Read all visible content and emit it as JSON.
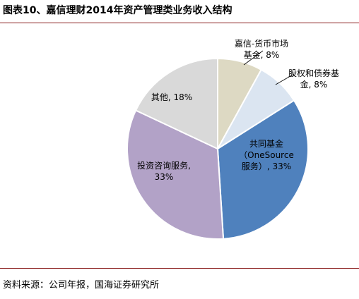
{
  "title": "图表10、嘉信理财2014年资产管理类业务收入结构",
  "source": "资料来源：公司年报，国海证券研究所",
  "chart_data": {
    "type": "pie",
    "title": "图表10、嘉信理财2014年资产管理类业务收入结构",
    "unit": "%",
    "slices": [
      {
        "label_lines": [
          "嘉信-货币市场",
          "基金, 8%"
        ],
        "value": 8,
        "color": "#ddd9c3"
      },
      {
        "label_lines": [
          "股权和债券基",
          "金, 8%"
        ],
        "value": 8,
        "color": "#dbe5f1"
      },
      {
        "label_lines": [
          "共同基金",
          "（OneSource",
          "服务）, 33%"
        ],
        "value": 33,
        "color": "#4f81bd"
      },
      {
        "label_lines": [
          "投资咨询服务,",
          "33%"
        ],
        "value": 33,
        "color": "#b2a2c7"
      },
      {
        "label_lines": [
          "其他, 18%"
        ],
        "value": 18,
        "color": "#d9d9d9"
      }
    ]
  }
}
